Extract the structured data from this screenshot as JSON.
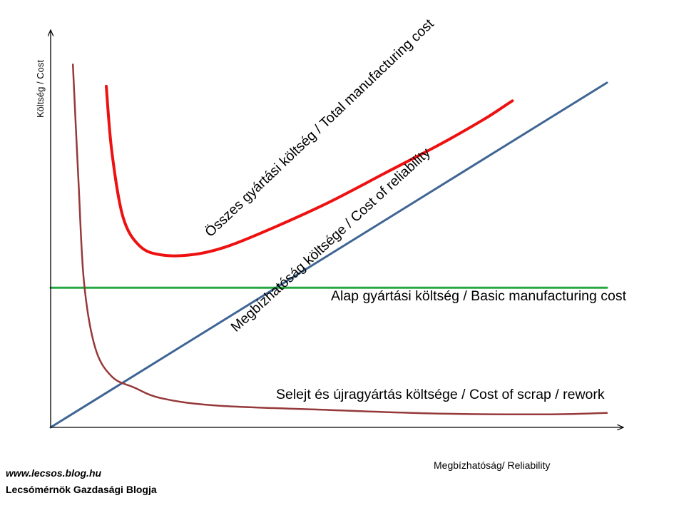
{
  "chart_data": {
    "type": "line",
    "title": "",
    "xlabel": "Megbízhatóság/  Reliability",
    "ylabel": "Költség / Cost",
    "grid": false,
    "legend": "none",
    "series": [
      {
        "name": "Összes gyártási költség / Total manufacturing cost",
        "color": "#ee1111",
        "points": [
          [
            10,
            94
          ],
          [
            11,
            76
          ],
          [
            13,
            58
          ],
          [
            16,
            50
          ],
          [
            20,
            47.5
          ],
          [
            26,
            47.7
          ],
          [
            32,
            50
          ],
          [
            40,
            55
          ],
          [
            50,
            62
          ],
          [
            60,
            70
          ],
          [
            70,
            78
          ],
          [
            78,
            85
          ],
          [
            82,
            89
          ],
          [
            83,
            90
          ]
        ]
      },
      {
        "name": "Megbízhatóság költsége / Cost of reliability",
        "color": "#3f6594",
        "points": [
          [
            0,
            0
          ],
          [
            100,
            95
          ]
        ]
      },
      {
        "name": "Alap gyártási költség / Basic manufacturing cost",
        "color": "#25a842",
        "points": [
          [
            0,
            38.5
          ],
          [
            100,
            38.5
          ]
        ]
      },
      {
        "name": "Selejt és újragyártás költsége / Cost of scrap / rework",
        "color": "#96393b",
        "points": [
          [
            4,
            100
          ],
          [
            5,
            68
          ],
          [
            6,
            40
          ],
          [
            8,
            22
          ],
          [
            11,
            14
          ],
          [
            15,
            11
          ],
          [
            20,
            8
          ],
          [
            30,
            6
          ],
          [
            50,
            4.8
          ],
          [
            70,
            3.8
          ],
          [
            90,
            3.6
          ],
          [
            100,
            4
          ]
        ]
      }
    ],
    "xlim": [
      0,
      100
    ],
    "ylim": [
      0,
      105
    ]
  },
  "watermark": {
    "url": "www.lecsos.blog.hu",
    "name": "Lecsómérnök Gazdasági Blogja"
  }
}
